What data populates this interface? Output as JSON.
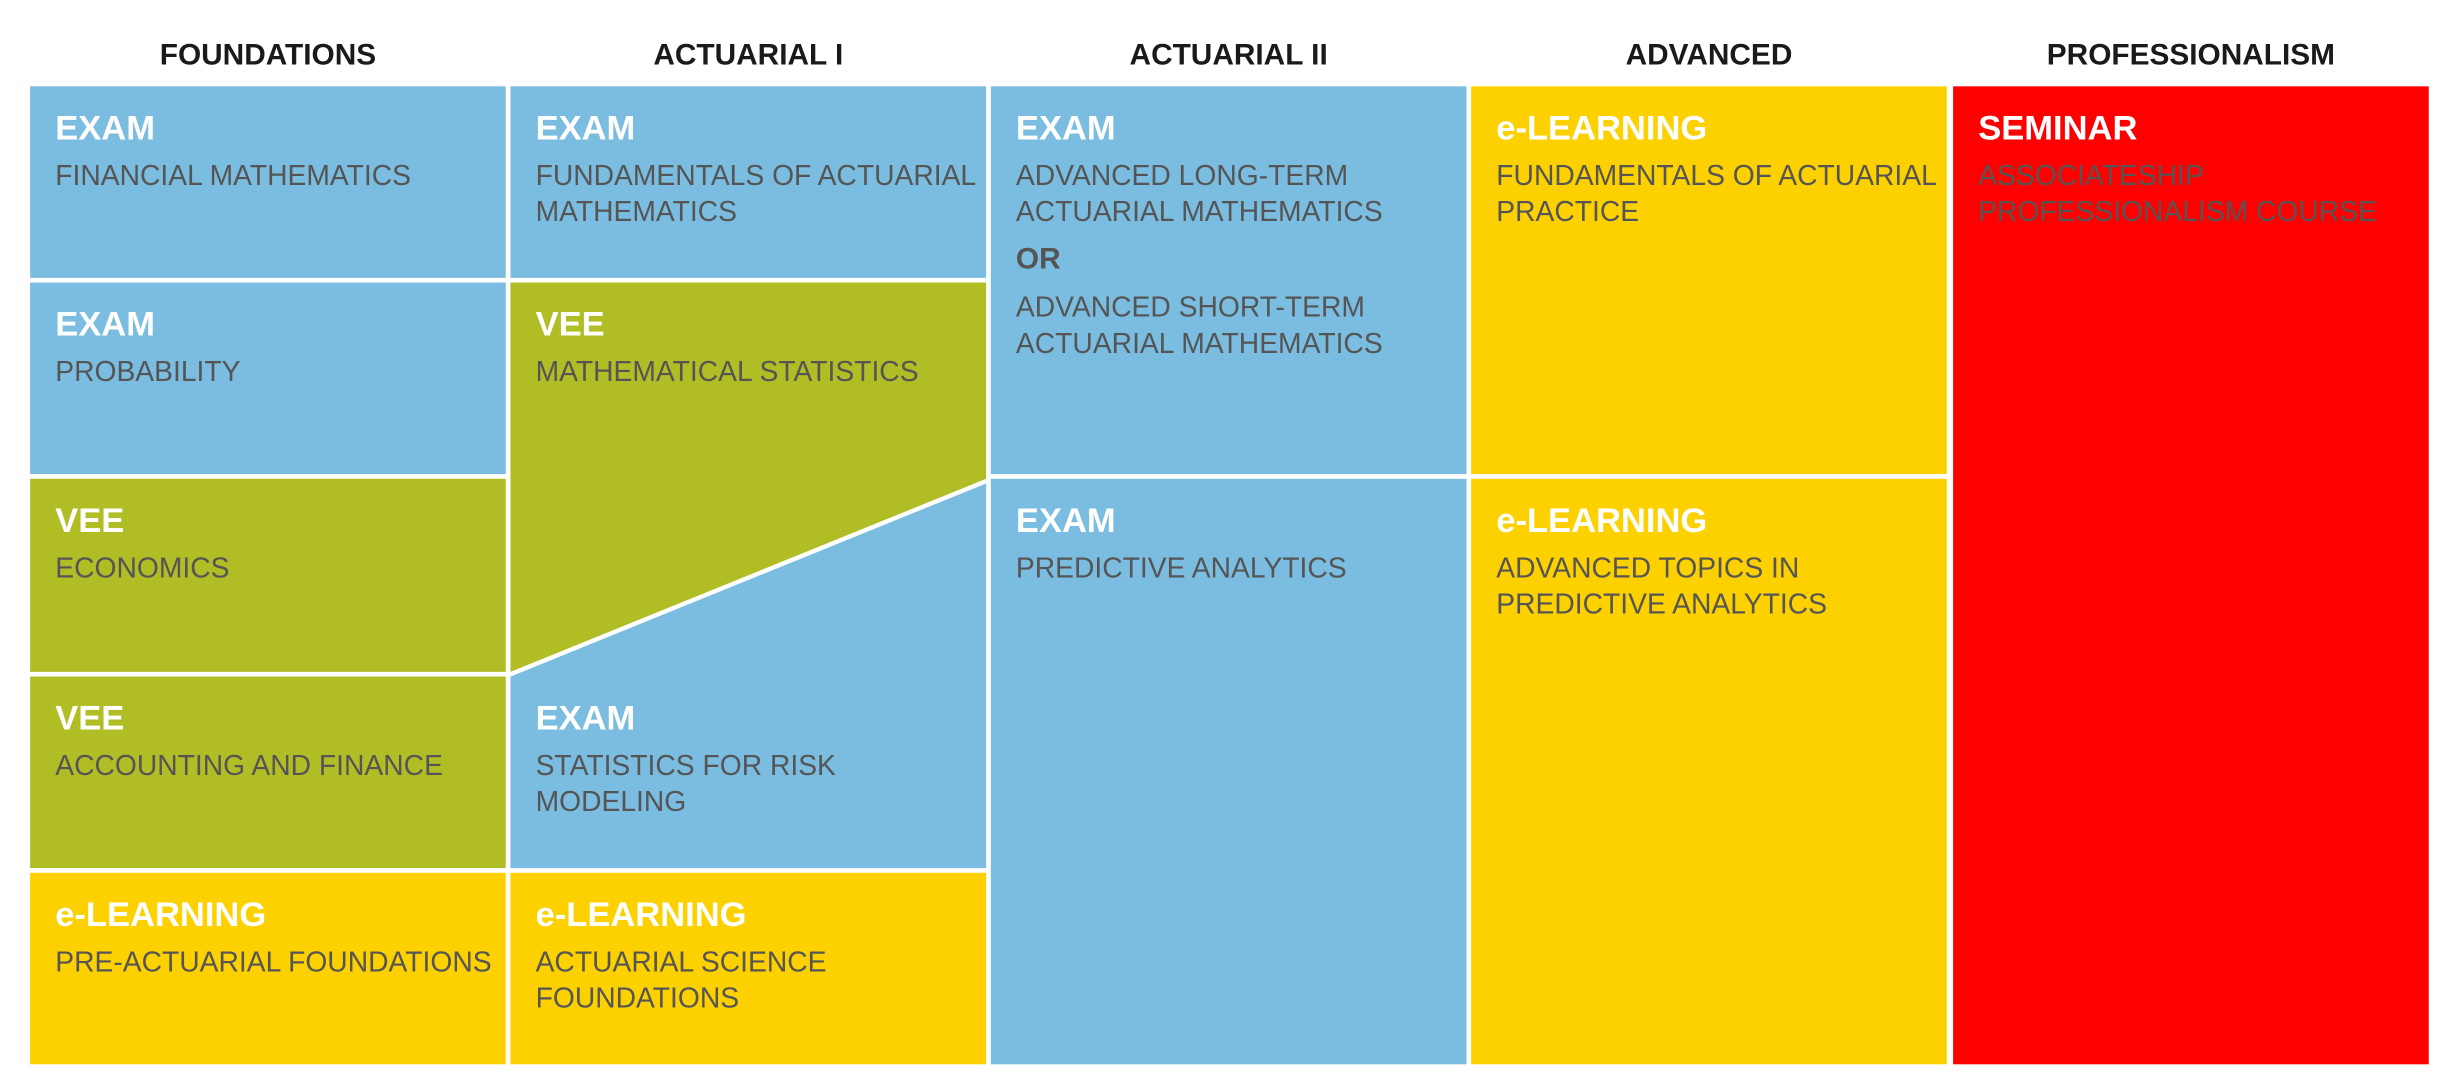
{
  "columns": [
    {
      "title": "FOUNDATIONS",
      "blocks": [
        {
          "kind": "EXAM",
          "lines": [
            "FINANCIAL MATHEMATICS"
          ]
        },
        {
          "kind": "EXAM",
          "lines": [
            "PROBABILITY"
          ]
        },
        {
          "kind": "VEE",
          "lines": [
            "ECONOMICS"
          ]
        },
        {
          "kind": "VEE",
          "lines": [
            "ACCOUNTING AND FINANCE"
          ]
        },
        {
          "kind": "e-LEARNING",
          "lines": [
            "PRE-ACTUARIAL FOUNDATIONS"
          ]
        }
      ]
    },
    {
      "title": "ACTUARIAL I",
      "blocks": [
        {
          "kind": "EXAM",
          "lines": [
            "FUNDAMENTALS OF ACTUARIAL",
            "MATHEMATICS"
          ]
        },
        {
          "kind": "VEE",
          "lines": [
            "MATHEMATICAL STATISTICS"
          ]
        },
        {
          "kind": "EXAM",
          "lines": [
            "STATISTICS FOR RISK",
            "MODELING"
          ]
        },
        {
          "kind": "e-LEARNING",
          "lines": [
            "ACTUARIAL SCIENCE",
            "FOUNDATIONS"
          ]
        }
      ]
    },
    {
      "title": "ACTUARIAL II",
      "blocks": [
        {
          "kind": "EXAM",
          "lines": [
            "ADVANCED LONG-TERM",
            "ACTUARIAL MATHEMATICS"
          ],
          "or": "OR",
          "alt_lines": [
            "ADVANCED SHORT-TERM",
            "ACTUARIAL MATHEMATICS"
          ]
        },
        {
          "kind": "EXAM",
          "lines": [
            "PREDICTIVE ANALYTICS"
          ]
        }
      ]
    },
    {
      "title": "ADVANCED",
      "blocks": [
        {
          "kind": "e-LEARNING",
          "lines": [
            "FUNDAMENTALS OF ACTUARIAL",
            "PRACTICE"
          ]
        },
        {
          "kind": "e-LEARNING",
          "lines": [
            "ADVANCED TOPICS IN",
            "PREDICTIVE ANALYTICS"
          ]
        }
      ]
    },
    {
      "title": "PROFESSIONALISM",
      "blocks": [
        {
          "kind": "SEMINAR",
          "lines": [
            "ASSOCIATESHIP",
            "PROFESSIONALISM COURSE"
          ]
        }
      ]
    }
  ]
}
